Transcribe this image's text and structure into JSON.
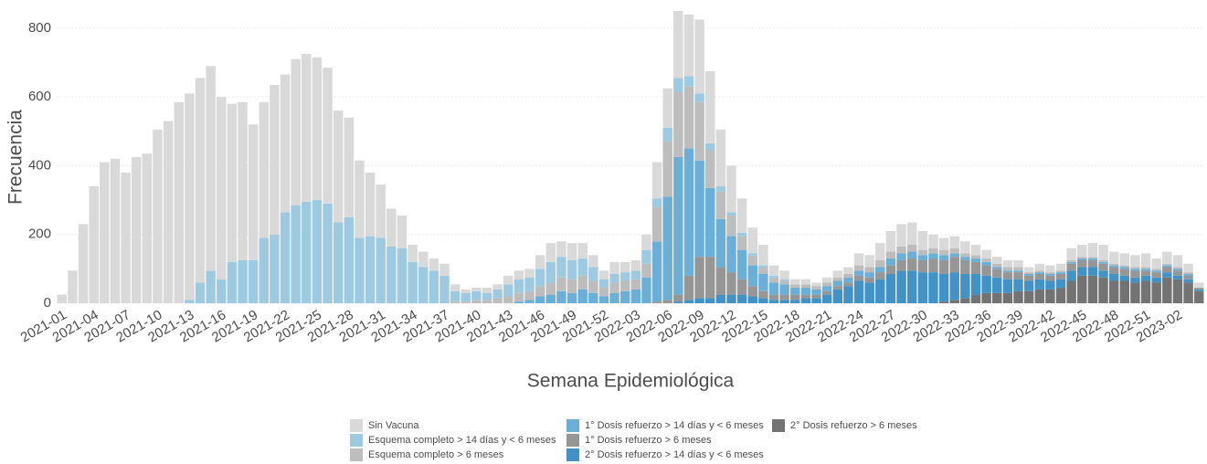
{
  "chart_data": {
    "type": "stacked-bar",
    "x_label": "Semana Epidemiológica",
    "y_label": "Frecuencia",
    "categories": [
      "2021-01",
      null,
      null,
      "2021-04",
      null,
      null,
      "2021-07",
      null,
      null,
      "2021-10",
      null,
      null,
      "2021-13",
      null,
      null,
      "2021-16",
      null,
      null,
      "2021-19",
      null,
      null,
      "2021-22",
      null,
      null,
      "2021-25",
      null,
      null,
      "2021-28",
      null,
      null,
      "2021-31",
      null,
      null,
      "2021-34",
      null,
      null,
      "2021-37",
      null,
      null,
      "2021-40",
      null,
      null,
      "2021-43",
      null,
      null,
      "2021-46",
      null,
      null,
      "2021-49",
      null,
      null,
      "2021-52",
      null,
      null,
      "2022-03",
      null,
      null,
      "2022-06",
      null,
      null,
      "2022-09",
      null,
      null,
      "2022-12",
      null,
      null,
      "2022-15",
      null,
      null,
      "2022-18",
      null,
      null,
      "2022-21",
      null,
      null,
      "2022-24",
      null,
      null,
      "2022-27",
      null,
      null,
      "2022-30",
      null,
      null,
      "2022-33",
      null,
      null,
      "2022-36",
      null,
      null,
      "2022-39",
      null,
      null,
      "2022-42",
      null,
      null,
      "2022-45",
      null,
      null,
      "2022-48",
      null,
      null,
      "2022-51",
      null,
      null,
      "2023-02",
      null,
      null
    ],
    "series": [
      {
        "name": "Sin Vacuna",
        "color": "#d9d9d9",
        "values": [
          25,
          95,
          230,
          340,
          410,
          420,
          380,
          425,
          435,
          505,
          530,
          585,
          600,
          595,
          595,
          530,
          460,
          460,
          395,
          395,
          435,
          400,
          425,
          430,
          415,
          395,
          325,
          290,
          225,
          185,
          155,
          110,
          95,
          50,
          45,
          35,
          35,
          20,
          10,
          10,
          15,
          15,
          25,
          25,
          25,
          40,
          55,
          45,
          50,
          45,
          35,
          25,
          35,
          30,
          30,
          45,
          105,
          115,
          195,
          180,
          215,
          210,
          165,
          135,
          100,
          75,
          60,
          30,
          25,
          15,
          15,
          10,
          15,
          20,
          20,
          35,
          35,
          50,
          60,
          65,
          65,
          55,
          40,
          35,
          35,
          35,
          30,
          25,
          20,
          20,
          20,
          15,
          20,
          20,
          20,
          35,
          35,
          40,
          45,
          35,
          35,
          35,
          40,
          30,
          35,
          35,
          25,
          15
        ]
      },
      {
        "name": "Esquema completo > 14 días y < 6 meses",
        "color": "#9ecae1",
        "values": [
          0,
          0,
          0,
          0,
          0,
          0,
          0,
          0,
          0,
          0,
          0,
          0,
          10,
          60,
          95,
          70,
          120,
          125,
          125,
          190,
          200,
          265,
          285,
          295,
          300,
          290,
          235,
          250,
          190,
          195,
          190,
          165,
          160,
          120,
          105,
          95,
          80,
          30,
          25,
          25,
          20,
          25,
          35,
          40,
          40,
          50,
          60,
          60,
          55,
          50,
          40,
          25,
          25,
          25,
          25,
          40,
          25,
          40,
          40,
          30,
          25,
          20,
          15,
          10,
          10,
          5,
          5,
          5,
          5,
          0,
          0,
          0,
          0,
          0,
          0,
          0,
          0,
          0,
          0,
          0,
          0,
          0,
          0,
          0,
          0,
          0,
          0,
          0,
          0,
          0,
          0,
          0,
          0,
          0,
          0,
          0,
          0,
          0,
          0,
          0,
          0,
          0,
          0,
          0,
          0,
          0,
          0,
          0
        ]
      },
      {
        "name": "Esquema completo > 6 meses",
        "color": "#bdbdbd",
        "values": [
          0,
          0,
          0,
          0,
          0,
          0,
          0,
          0,
          0,
          0,
          0,
          0,
          0,
          0,
          0,
          0,
          0,
          0,
          0,
          0,
          0,
          0,
          0,
          0,
          0,
          0,
          0,
          0,
          0,
          0,
          0,
          0,
          0,
          0,
          0,
          0,
          0,
          5,
          5,
          10,
          10,
          15,
          20,
          25,
          25,
          30,
          35,
          40,
          40,
          40,
          35,
          25,
          30,
          30,
          30,
          40,
          100,
          160,
          190,
          180,
          170,
          110,
          80,
          60,
          40,
          30,
          20,
          15,
          10,
          10,
          10,
          10,
          10,
          10,
          10,
          15,
          15,
          20,
          20,
          20,
          20,
          15,
          15,
          15,
          15,
          10,
          10,
          10,
          10,
          10,
          10,
          5,
          5,
          5,
          5,
          5,
          5,
          5,
          5,
          5,
          5,
          5,
          5,
          5,
          5,
          5,
          5,
          0
        ]
      },
      {
        "name": "1° Dosis refuerzo > 14 días y < 6 meses",
        "color": "#6baed6",
        "values": [
          0,
          0,
          0,
          0,
          0,
          0,
          0,
          0,
          0,
          0,
          0,
          0,
          0,
          0,
          0,
          0,
          0,
          0,
          0,
          0,
          0,
          0,
          0,
          0,
          0,
          0,
          0,
          0,
          0,
          0,
          0,
          0,
          0,
          0,
          0,
          0,
          0,
          0,
          0,
          0,
          0,
          0,
          0,
          5,
          10,
          20,
          25,
          35,
          30,
          40,
          30,
          20,
          30,
          35,
          40,
          75,
          175,
          300,
          400,
          370,
          280,
          200,
          140,
          105,
          85,
          60,
          50,
          35,
          30,
          20,
          20,
          15,
          15,
          15,
          15,
          15,
          15,
          15,
          20,
          20,
          20,
          15,
          15,
          15,
          10,
          10,
          10,
          10,
          5,
          5,
          5,
          5,
          5,
          5,
          5,
          5,
          5,
          5,
          5,
          5,
          5,
          5,
          5,
          5,
          5,
          5,
          5,
          0
        ]
      },
      {
        "name": "1° Dosis refuerzo > 6 meses",
        "color": "#969696",
        "values": [
          0,
          0,
          0,
          0,
          0,
          0,
          0,
          0,
          0,
          0,
          0,
          0,
          0,
          0,
          0,
          0,
          0,
          0,
          0,
          0,
          0,
          0,
          0,
          0,
          0,
          0,
          0,
          0,
          0,
          0,
          0,
          0,
          0,
          0,
          0,
          0,
          0,
          0,
          0,
          0,
          0,
          0,
          0,
          0,
          0,
          0,
          0,
          0,
          0,
          0,
          0,
          0,
          0,
          0,
          0,
          0,
          5,
          10,
          20,
          70,
          120,
          120,
          80,
          65,
          45,
          30,
          20,
          15,
          15,
          15,
          10,
          10,
          10,
          10,
          10,
          15,
          15,
          20,
          25,
          30,
          35,
          35,
          40,
          40,
          45,
          40,
          35,
          30,
          25,
          20,
          20,
          15,
          15,
          15,
          15,
          20,
          20,
          20,
          20,
          20,
          20,
          20,
          15,
          15,
          15,
          15,
          10,
          5
        ]
      },
      {
        "name": "2° Dosis refuerzo > 14 días y < 6 meses",
        "color": "#4292c6",
        "values": [
          0,
          0,
          0,
          0,
          0,
          0,
          0,
          0,
          0,
          0,
          0,
          0,
          0,
          0,
          0,
          0,
          0,
          0,
          0,
          0,
          0,
          0,
          0,
          0,
          0,
          0,
          0,
          0,
          0,
          0,
          0,
          0,
          0,
          0,
          0,
          0,
          0,
          0,
          0,
          0,
          0,
          0,
          0,
          0,
          0,
          0,
          0,
          0,
          0,
          0,
          0,
          0,
          0,
          0,
          0,
          0,
          0,
          0,
          5,
          10,
          15,
          15,
          25,
          25,
          25,
          20,
          15,
          10,
          10,
          10,
          15,
          15,
          25,
          40,
          50,
          65,
          60,
          70,
          85,
          95,
          95,
          90,
          90,
          80,
          80,
          70,
          60,
          50,
          45,
          40,
          35,
          30,
          30,
          25,
          25,
          30,
          25,
          25,
          20,
          20,
          15,
          15,
          15,
          15,
          15,
          10,
          10,
          5
        ]
      },
      {
        "name": "2° Dosis refuerzo > 6 meses",
        "color": "#737373",
        "values": [
          0,
          0,
          0,
          0,
          0,
          0,
          0,
          0,
          0,
          0,
          0,
          0,
          0,
          0,
          0,
          0,
          0,
          0,
          0,
          0,
          0,
          0,
          0,
          0,
          0,
          0,
          0,
          0,
          0,
          0,
          0,
          0,
          0,
          0,
          0,
          0,
          0,
          0,
          0,
          0,
          0,
          0,
          0,
          0,
          0,
          0,
          0,
          0,
          0,
          0,
          0,
          0,
          0,
          0,
          0,
          0,
          0,
          0,
          0,
          0,
          0,
          0,
          0,
          0,
          0,
          0,
          0,
          0,
          0,
          0,
          0,
          0,
          0,
          0,
          0,
          0,
          0,
          0,
          0,
          0,
          0,
          0,
          0,
          5,
          10,
          15,
          25,
          30,
          30,
          30,
          35,
          35,
          40,
          40,
          45,
          65,
          80,
          80,
          75,
          65,
          65,
          60,
          65,
          60,
          75,
          70,
          60,
          35
        ]
      }
    ],
    "ylim": [
      0,
      850
    ],
    "yticks": [
      0,
      200,
      400,
      600,
      800
    ],
    "grid": true
  }
}
